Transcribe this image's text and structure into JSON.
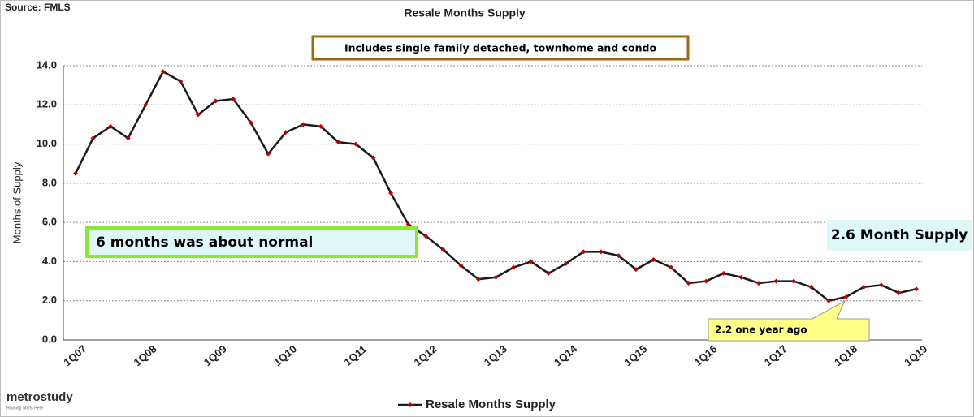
{
  "chart_data": {
    "type": "line",
    "title": "Resale Months Supply",
    "source": "Source: FMLS",
    "note": "Includes single family detached, townhome and condo",
    "y_label": "Months of Supply",
    "annotations": [
      "6  months was about normal",
      "2.6 Month Supply",
      "2.2 one year ago"
    ],
    "logo": "metrostudy",
    "logo_tagline": "Housing Starts Here",
    "categories": [
      "1Q07",
      null,
      null,
      null,
      "1Q08",
      null,
      null,
      null,
      "1Q09",
      null,
      null,
      null,
      "1Q10",
      null,
      null,
      null,
      "1Q11",
      null,
      null,
      null,
      "1Q12",
      null,
      null,
      null,
      "1Q13",
      null,
      null,
      null,
      "1Q14",
      null,
      null,
      null,
      "1Q15",
      null,
      null,
      null,
      "1Q16",
      null,
      null,
      null,
      "1Q17",
      null,
      null,
      null,
      "1Q18",
      null,
      null,
      null,
      "1Q19"
    ],
    "series": [
      {
        "name": "Resale Months Supply",
        "color": "#1a1a1a",
        "marker_color": "#c00000",
        "values": [
          8.5,
          10.3,
          10.9,
          10.3,
          12.0,
          13.7,
          13.2,
          11.5,
          12.2,
          12.3,
          11.1,
          9.5,
          10.6,
          11.0,
          10.9,
          10.1,
          10.0,
          9.3,
          7.5,
          5.9,
          5.3,
          4.6,
          3.8,
          3.1,
          3.2,
          3.7,
          4.0,
          3.4,
          3.9,
          4.5,
          4.5,
          4.3,
          3.6,
          4.1,
          3.7,
          2.9,
          3.0,
          3.4,
          3.2,
          2.9,
          3.0,
          3.0,
          2.7,
          2.0,
          2.2,
          2.7,
          2.8,
          2.4,
          2.6
        ]
      }
    ],
    "ylim": [
      0,
      14
    ],
    "yticks": [
      {
        "value": 0,
        "label": "0.0"
      },
      {
        "value": 2,
        "label": "2.0"
      },
      {
        "value": 4,
        "label": "4.0"
      },
      {
        "value": 6,
        "label": "6.0"
      },
      {
        "value": 8,
        "label": "8.0"
      },
      {
        "value": 10,
        "label": "10.0"
      },
      {
        "value": 12,
        "label": "12.0"
      },
      {
        "value": 14,
        "label": "14.0"
      }
    ],
    "grid": true,
    "legend": "bottom"
  }
}
